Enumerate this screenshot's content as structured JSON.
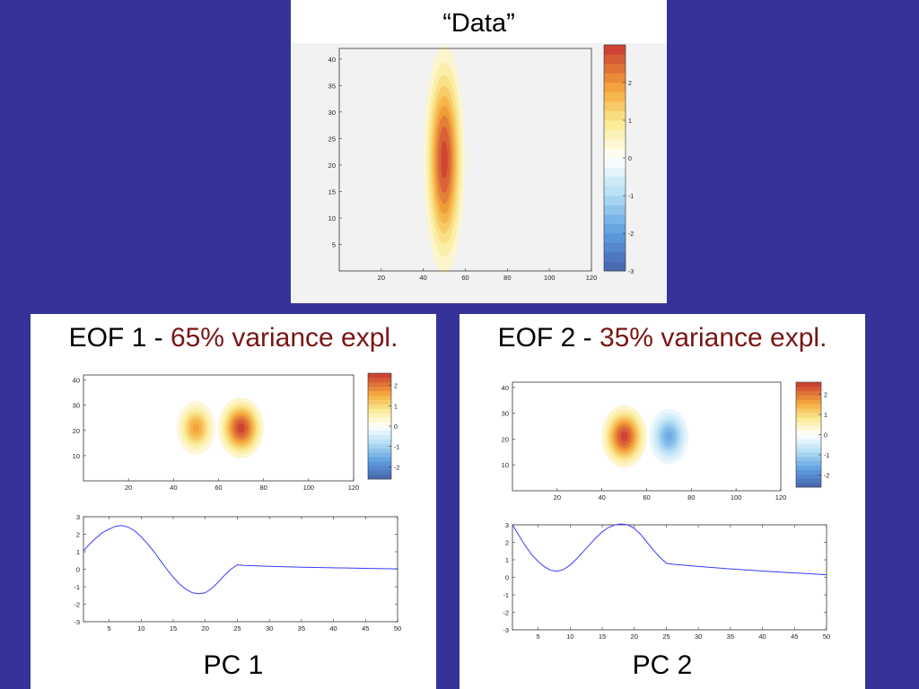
{
  "colors": {
    "background": "#353399",
    "accent": "#7a1515",
    "curve": "#3a3aff"
  },
  "top": {
    "title": "“Data”"
  },
  "eof1": {
    "prefix": "EOF 1 - ",
    "variance": "65% variance expl.",
    "pc_label": "PC 1"
  },
  "eof2": {
    "prefix": "EOF 2 - ",
    "variance": "35% variance expl.",
    "pc_label": "PC 2"
  },
  "chart_data": [
    {
      "type": "heatmap",
      "name": "data",
      "xlim": [
        0,
        120
      ],
      "ylim": [
        0,
        42
      ],
      "xticks": [
        20,
        40,
        60,
        80,
        100,
        120
      ],
      "yticks": [
        5,
        10,
        15,
        20,
        25,
        30,
        35,
        40
      ],
      "blobs": [
        {
          "x": 50,
          "y": 21,
          "amp": 3,
          "sx": 5,
          "sy": 11
        }
      ],
      "colorbar": {
        "range": [
          -3,
          3
        ],
        "ticks": [
          2,
          1,
          0,
          -1,
          -2,
          -3
        ]
      }
    },
    {
      "type": "heatmap",
      "name": "eof1_map",
      "xlim": [
        0,
        120
      ],
      "ylim": [
        0,
        42
      ],
      "xticks": [
        20,
        40,
        60,
        80,
        100,
        120
      ],
      "yticks": [
        10,
        20,
        30,
        40
      ],
      "blobs": [
        {
          "x": 50,
          "y": 21,
          "amp": 1.7,
          "sx": 4.5,
          "sy": 5.5
        },
        {
          "x": 70,
          "y": 21,
          "amp": 2.6,
          "sx": 5.2,
          "sy": 6.2
        }
      ],
      "colorbar": {
        "range": [
          -2.6,
          2.6
        ],
        "ticks": [
          2,
          1,
          0,
          -1,
          -2
        ]
      }
    },
    {
      "type": "heatmap",
      "name": "eof2_map",
      "xlim": [
        0,
        120
      ],
      "ylim": [
        0,
        42
      ],
      "xticks": [
        20,
        40,
        60,
        80,
        100,
        120
      ],
      "yticks": [
        10,
        20,
        30,
        40
      ],
      "blobs": [
        {
          "x": 50,
          "y": 21,
          "amp": 2.6,
          "sx": 5.2,
          "sy": 6.2
        },
        {
          "x": 70,
          "y": 21,
          "amp": -1.6,
          "sx": 4.5,
          "sy": 5.5
        }
      ],
      "colorbar": {
        "range": [
          -2.6,
          2.6
        ],
        "ticks": [
          2,
          1,
          0,
          -1,
          -2
        ]
      }
    },
    {
      "type": "line",
      "name": "pc1",
      "xlim": [
        1,
        50
      ],
      "ylim": [
        -3,
        3
      ],
      "xticks": [
        5,
        10,
        15,
        20,
        25,
        30,
        35,
        40,
        45,
        50
      ],
      "yticks": [
        3,
        2,
        1,
        0,
        -1,
        -2,
        -3
      ],
      "x": [
        1,
        2,
        3,
        4,
        5,
        6,
        7,
        8,
        9,
        10,
        11,
        12,
        13,
        14,
        15,
        16,
        17,
        18,
        19,
        20,
        21,
        22,
        23,
        24,
        25,
        26,
        30,
        35,
        40,
        45,
        50
      ],
      "y": [
        1.05,
        1.45,
        1.8,
        2.1,
        2.3,
        2.45,
        2.5,
        2.4,
        2.2,
        1.85,
        1.45,
        1.0,
        0.5,
        0.0,
        -0.45,
        -0.85,
        -1.15,
        -1.35,
        -1.4,
        -1.35,
        -1.1,
        -0.75,
        -0.35,
        0.0,
        0.25,
        0.22,
        0.17,
        0.12,
        0.08,
        0.05,
        0.02
      ]
    },
    {
      "type": "line",
      "name": "pc2",
      "xlim": [
        1,
        50
      ],
      "ylim": [
        -3,
        3
      ],
      "xticks": [
        5,
        10,
        15,
        20,
        25,
        30,
        35,
        40,
        45,
        50
      ],
      "yticks": [
        3,
        2,
        1,
        0,
        -1,
        -2,
        -3
      ],
      "x": [
        1,
        2,
        3,
        4,
        5,
        6,
        7,
        8,
        9,
        10,
        11,
        12,
        13,
        14,
        15,
        16,
        17,
        18,
        19,
        20,
        21,
        22,
        23,
        24,
        25,
        26,
        30,
        35,
        40,
        45,
        50
      ],
      "y": [
        3.0,
        2.4,
        1.8,
        1.3,
        0.9,
        0.6,
        0.4,
        0.35,
        0.45,
        0.7,
        1.05,
        1.45,
        1.85,
        2.25,
        2.6,
        2.85,
        3.0,
        3.05,
        3.0,
        2.8,
        2.45,
        2.0,
        1.55,
        1.15,
        0.8,
        0.75,
        0.62,
        0.48,
        0.36,
        0.25,
        0.15
      ]
    }
  ]
}
